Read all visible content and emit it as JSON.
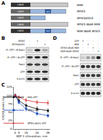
{
  "panels": {
    "A": {
      "label": "A",
      "constructs": [
        {
          "name": "MIM",
          "segments": [
            {
              "label": "I-BAR",
              "color": "#333333"
            },
            {
              "color": "#c8c8c8"
            }
          ]
        },
        {
          "name": "IRTKS",
          "segments": [
            {
              "label": "I-BAR",
              "color": "#666666"
            },
            {
              "color": "#9bb8e0"
            },
            {
              "label": "SH3",
              "color": "#2f5fa8"
            },
            {
              "color": "#9bb8e0"
            }
          ]
        },
        {
          "name": "IRTKSΔSH3",
          "segments": [
            {
              "label": "I-BAR",
              "color": "#666666"
            },
            {
              "color": "#9bb8e0"
            }
          ]
        },
        {
          "name": "IRTKS IBAR MIM",
          "segments": [
            {
              "label": "I-BAR",
              "color": "#666666"
            },
            {
              "color": "#c8c8c8"
            }
          ]
        },
        {
          "name": "MIM IBAR IRTKS",
          "segments": [
            {
              "label": "I-BAR",
              "color": "#333333"
            },
            {
              "color": "#9bb8e0"
            },
            {
              "label": "SH3",
              "color": "#2f5fa8"
            },
            {
              "color": "#9bb8e0"
            }
          ]
        }
      ]
    },
    "B": {
      "label": "B",
      "header": [
        {
          "name": "IRTKS",
          "marks": [
            "-",
            "+",
            "-"
          ]
        },
        {
          "name": "IRTKSΔSH3",
          "marks": [
            "-",
            "-",
            "+"
          ]
        }
      ],
      "rows": [
        {
          "label": "IP: GFP / IB:Rab1",
          "bands": [
            0.15,
            0.9,
            0.3
          ]
        },
        {
          "label": "IP: GFP / IB:GFP",
          "bands": [
            0.8,
            0.9,
            0.85
          ]
        },
        {
          "label": "Rab1",
          "bands": [
            0.8,
            0.8,
            0.8
          ]
        },
        {
          "label": "GFP",
          "bands": [
            0.85,
            0.85,
            0.85
          ]
        },
        {
          "label": "β-actin",
          "bands": [
            0.9,
            0.9,
            0.9
          ]
        }
      ]
    },
    "D": {
      "label": "D",
      "header": [
        {
          "name": "GFP",
          "marks": [
            "+",
            "-",
            "-",
            "-"
          ]
        },
        {
          "name": "MIM",
          "marks": [
            "-",
            "+",
            "-",
            "-"
          ]
        },
        {
          "name": "IRTKS-IBAR MIM",
          "marks": [
            "-",
            "-",
            "+",
            "-"
          ]
        },
        {
          "name": "MIM-IBAR IRTKS",
          "marks": [
            "-",
            "-",
            "-",
            "+"
          ]
        }
      ],
      "rows": [
        {
          "label": "IP: GFP / IB:Rab1",
          "bands": [
            0.1,
            0.3,
            0.4,
            0.9
          ]
        },
        {
          "label": "IP: GFP / IB:GFP",
          "bands": [
            0.85,
            0.8,
            0.85,
            0.8
          ]
        },
        {
          "label": "Rab1",
          "bands": [
            0.8,
            0.8,
            0.8,
            0.8
          ]
        },
        {
          "label": "GFP",
          "bands": [
            0.85,
            0.8,
            0.8,
            0.85
          ]
        },
        {
          "label": "β-actin",
          "bands": [
            0.9,
            0.9,
            0.9,
            0.9
          ]
        }
      ]
    }
  },
  "chart_data": {
    "label": "C",
    "type": "line",
    "x_label": "SDF-1 stimulation, min",
    "y_label": "CXCR4 levels (%)",
    "x": [
      0,
      5,
      15,
      30,
      45
    ],
    "xlim": [
      -2,
      48
    ],
    "xticks": [
      0,
      5,
      15,
      30,
      45
    ],
    "ylim": [
      0,
      125
    ],
    "yticks": [
      0,
      25,
      50,
      75,
      100,
      125
    ],
    "legend": "top right",
    "grid": false,
    "series": [
      {
        "name": "MIM-GFP",
        "color": "#000000",
        "marker": "circle",
        "values": [
          100,
          85,
          70,
          60,
          55
        ],
        "error": [
          4,
          5,
          5,
          6,
          5
        ]
      },
      {
        "name": "IRTKS-GFP",
        "color": "#1f4fbf",
        "marker": "square",
        "values": [
          100,
          80,
          60,
          46,
          40
        ],
        "error": [
          4,
          5,
          6,
          5,
          5
        ]
      },
      {
        "name": "IRTKS-ΔSH3-GFP",
        "color": "#d02020",
        "marker": "triangle-up",
        "values": [
          100,
          95,
          86,
          80,
          78
        ],
        "error": [
          4,
          4,
          5,
          5,
          6
        ]
      }
    ]
  }
}
